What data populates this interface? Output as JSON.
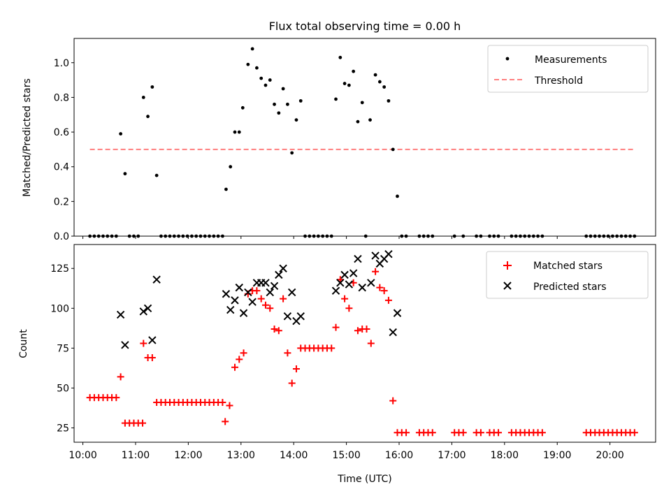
{
  "title": "Flux total observing time = 0.00 h",
  "colors": {
    "measurement": "#000000",
    "threshold": "#ff7f7f",
    "matched": "#ff0000",
    "predicted": "#000000"
  },
  "chart_data": [
    {
      "type": "scatter",
      "title": "Flux total observing time = 0.00 h",
      "ylabel": "Matched/Predicted stars",
      "xlabel": "",
      "xlim": [
        "09:50",
        "20:52"
      ],
      "ylim": [
        0,
        1.14
      ],
      "yticks": [
        "0.0",
        "0.2",
        "0.4",
        "0.6",
        "0.8",
        "1.0"
      ],
      "grid": false,
      "legend_position": "top-right",
      "legend": [
        "Measurements",
        "Threshold"
      ],
      "series": [
        {
          "name": "Measurements",
          "marker": "dot",
          "points": [
            [
              "10:08",
              0
            ],
            [
              "10:13",
              0
            ],
            [
              "10:18",
              0
            ],
            [
              "10:23",
              0
            ],
            [
              "10:28",
              0
            ],
            [
              "10:33",
              0
            ],
            [
              "10:38",
              0
            ],
            [
              "10:43",
              0.59
            ],
            [
              "10:48",
              0.36
            ],
            [
              "10:53",
              0
            ],
            [
              "10:58",
              0
            ],
            [
              "11:03",
              0
            ],
            [
              "11:09",
              0.8
            ],
            [
              "11:14",
              0.69
            ],
            [
              "11:19",
              0.86
            ],
            [
              "11:24",
              0.35
            ],
            [
              "11:29",
              0
            ],
            [
              "11:34",
              0
            ],
            [
              "11:39",
              0
            ],
            [
              "11:44",
              0
            ],
            [
              "11:49",
              0
            ],
            [
              "11:54",
              0
            ],
            [
              "11:59",
              0
            ],
            [
              "12:04",
              0
            ],
            [
              "12:09",
              0
            ],
            [
              "12:14",
              0
            ],
            [
              "12:19",
              0
            ],
            [
              "12:24",
              0
            ],
            [
              "12:29",
              0
            ],
            [
              "12:34",
              0
            ],
            [
              "12:39",
              0
            ],
            [
              "12:43",
              0.27
            ],
            [
              "12:48",
              0.4
            ],
            [
              "12:53",
              0.6
            ],
            [
              "12:58",
              0.6
            ],
            [
              "13:02",
              0.74
            ],
            [
              "13:08",
              0.99
            ],
            [
              "13:13",
              1.08
            ],
            [
              "13:18",
              0.97
            ],
            [
              "13:23",
              0.91
            ],
            [
              "13:28",
              0.87
            ],
            [
              "13:33",
              0.9
            ],
            [
              "13:38",
              0.76
            ],
            [
              "13:43",
              0.71
            ],
            [
              "13:48",
              0.85
            ],
            [
              "13:53",
              0.76
            ],
            [
              "13:58",
              0.48
            ],
            [
              "14:03",
              0.67
            ],
            [
              "14:08",
              0.78
            ],
            [
              "14:13",
              0
            ],
            [
              "14:18",
              0
            ],
            [
              "14:23",
              0
            ],
            [
              "14:28",
              0
            ],
            [
              "14:33",
              0
            ],
            [
              "14:38",
              0
            ],
            [
              "14:43",
              0
            ],
            [
              "14:48",
              0.79
            ],
            [
              "14:53",
              1.03
            ],
            [
              "14:58",
              0.88
            ],
            [
              "15:03",
              0.87
            ],
            [
              "15:08",
              0.95
            ],
            [
              "15:13",
              0.66
            ],
            [
              "15:18",
              0.77
            ],
            [
              "15:22",
              0
            ],
            [
              "15:27",
              0.67
            ],
            [
              "15:33",
              0.93
            ],
            [
              "15:38",
              0.89
            ],
            [
              "15:43",
              0.86
            ],
            [
              "15:48",
              0.78
            ],
            [
              "15:53",
              0.5
            ],
            [
              "15:58",
              0.23
            ],
            [
              "16:03",
              0
            ],
            [
              "16:08",
              0
            ],
            [
              "16:23",
              0
            ],
            [
              "16:28",
              0
            ],
            [
              "16:33",
              0
            ],
            [
              "16:38",
              0
            ],
            [
              "17:03",
              0
            ],
            [
              "17:13",
              0
            ],
            [
              "17:28",
              0
            ],
            [
              "17:33",
              0
            ],
            [
              "17:43",
              0
            ],
            [
              "17:48",
              0
            ],
            [
              "17:53",
              0
            ],
            [
              "18:08",
              0
            ],
            [
              "18:13",
              0
            ],
            [
              "18:18",
              0
            ],
            [
              "18:23",
              0
            ],
            [
              "18:28",
              0
            ],
            [
              "18:33",
              0
            ],
            [
              "18:38",
              0
            ],
            [
              "18:43",
              0
            ],
            [
              "19:33",
              0
            ],
            [
              "19:38",
              0
            ],
            [
              "19:43",
              0
            ],
            [
              "19:48",
              0
            ],
            [
              "19:53",
              0
            ],
            [
              "19:58",
              0
            ],
            [
              "20:03",
              0
            ],
            [
              "20:08",
              0
            ],
            [
              "20:13",
              0
            ],
            [
              "20:18",
              0
            ],
            [
              "20:23",
              0
            ],
            [
              "20:28",
              0
            ]
          ]
        },
        {
          "name": "Threshold",
          "style": "dashed",
          "points": [
            [
              "10:08",
              0.5
            ],
            [
              "20:28",
              0.5
            ]
          ]
        }
      ]
    },
    {
      "type": "scatter",
      "ylabel": "Count",
      "xlabel": "Time (UTC)",
      "xlim": [
        "09:50",
        "20:52"
      ],
      "ylim": [
        16,
        140
      ],
      "yticks": [
        "25",
        "50",
        "75",
        "100",
        "125"
      ],
      "xticks": [
        "10:00",
        "11:00",
        "12:00",
        "13:00",
        "14:00",
        "15:00",
        "16:00",
        "17:00",
        "18:00",
        "19:00",
        "20:00"
      ],
      "grid": false,
      "legend_position": "top-right",
      "legend": [
        "Matched stars",
        "Predicted stars"
      ],
      "series": [
        {
          "name": "Matched stars",
          "marker": "plus",
          "points": [
            [
              "10:08",
              44
            ],
            [
              "10:13",
              44
            ],
            [
              "10:18",
              44
            ],
            [
              "10:23",
              44
            ],
            [
              "10:28",
              44
            ],
            [
              "10:33",
              44
            ],
            [
              "10:38",
              44
            ],
            [
              "10:43",
              57
            ],
            [
              "10:48",
              28
            ],
            [
              "10:53",
              28
            ],
            [
              "10:58",
              28
            ],
            [
              "11:03",
              28
            ],
            [
              "11:08",
              28
            ],
            [
              "11:09",
              78
            ],
            [
              "11:14",
              69
            ],
            [
              "11:19",
              69
            ],
            [
              "11:24",
              41
            ],
            [
              "11:29",
              41
            ],
            [
              "11:34",
              41
            ],
            [
              "11:39",
              41
            ],
            [
              "11:44",
              41
            ],
            [
              "11:49",
              41
            ],
            [
              "11:54",
              41
            ],
            [
              "11:59",
              41
            ],
            [
              "12:04",
              41
            ],
            [
              "12:09",
              41
            ],
            [
              "12:14",
              41
            ],
            [
              "12:19",
              41
            ],
            [
              "12:24",
              41
            ],
            [
              "12:29",
              41
            ],
            [
              "12:34",
              41
            ],
            [
              "12:39",
              41
            ],
            [
              "12:42",
              29
            ],
            [
              "12:47",
              39
            ],
            [
              "12:53",
              63
            ],
            [
              "12:58",
              68
            ],
            [
              "13:03",
              72
            ],
            [
              "13:08",
              109
            ],
            [
              "13:13",
              111
            ],
            [
              "13:18",
              111
            ],
            [
              "13:23",
              106
            ],
            [
              "13:28",
              102
            ],
            [
              "13:33",
              100
            ],
            [
              "13:38",
              87
            ],
            [
              "13:43",
              86
            ],
            [
              "13:48",
              106
            ],
            [
              "13:53",
              72
            ],
            [
              "13:58",
              53
            ],
            [
              "14:03",
              62
            ],
            [
              "14:08",
              75
            ],
            [
              "14:13",
              75
            ],
            [
              "14:18",
              75
            ],
            [
              "14:23",
              75
            ],
            [
              "14:28",
              75
            ],
            [
              "14:33",
              75
            ],
            [
              "14:38",
              75
            ],
            [
              "14:43",
              75
            ],
            [
              "14:48",
              88
            ],
            [
              "14:53",
              118
            ],
            [
              "14:58",
              106
            ],
            [
              "15:03",
              100
            ],
            [
              "15:08",
              116
            ],
            [
              "15:13",
              86
            ],
            [
              "15:18",
              87
            ],
            [
              "15:23",
              87
            ],
            [
              "15:28",
              78
            ],
            [
              "15:33",
              123
            ],
            [
              "15:38",
              113
            ],
            [
              "15:43",
              111
            ],
            [
              "15:48",
              105
            ],
            [
              "15:53",
              42
            ],
            [
              "15:58",
              22
            ],
            [
              "16:03",
              22
            ],
            [
              "16:08",
              22
            ],
            [
              "16:23",
              22
            ],
            [
              "16:28",
              22
            ],
            [
              "16:33",
              22
            ],
            [
              "16:38",
              22
            ],
            [
              "17:03",
              22
            ],
            [
              "17:08",
              22
            ],
            [
              "17:13",
              22
            ],
            [
              "17:28",
              22
            ],
            [
              "17:33",
              22
            ],
            [
              "17:43",
              22
            ],
            [
              "17:48",
              22
            ],
            [
              "17:53",
              22
            ],
            [
              "18:08",
              22
            ],
            [
              "18:13",
              22
            ],
            [
              "18:18",
              22
            ],
            [
              "18:23",
              22
            ],
            [
              "18:28",
              22
            ],
            [
              "18:33",
              22
            ],
            [
              "18:38",
              22
            ],
            [
              "18:43",
              22
            ],
            [
              "19:33",
              22
            ],
            [
              "19:38",
              22
            ],
            [
              "19:43",
              22
            ],
            [
              "19:48",
              22
            ],
            [
              "19:53",
              22
            ],
            [
              "19:58",
              22
            ],
            [
              "20:03",
              22
            ],
            [
              "20:08",
              22
            ],
            [
              "20:13",
              22
            ],
            [
              "20:18",
              22
            ],
            [
              "20:23",
              22
            ],
            [
              "20:28",
              22
            ]
          ]
        },
        {
          "name": "Predicted stars",
          "marker": "x",
          "points": [
            [
              "10:43",
              96
            ],
            [
              "10:48",
              77
            ],
            [
              "11:09",
              98
            ],
            [
              "11:14",
              100
            ],
            [
              "11:19",
              80
            ],
            [
              "11:24",
              118
            ],
            [
              "12:43",
              109
            ],
            [
              "12:48",
              99
            ],
            [
              "12:53",
              105
            ],
            [
              "12:58",
              113
            ],
            [
              "13:03",
              97
            ],
            [
              "13:08",
              110
            ],
            [
              "13:13",
              104
            ],
            [
              "13:18",
              116
            ],
            [
              "13:23",
              116
            ],
            [
              "13:28",
              116
            ],
            [
              "13:33",
              110
            ],
            [
              "13:38",
              114
            ],
            [
              "13:43",
              121
            ],
            [
              "13:48",
              125
            ],
            [
              "13:53",
              95
            ],
            [
              "13:58",
              110
            ],
            [
              "14:03",
              92
            ],
            [
              "14:08",
              95
            ],
            [
              "14:48",
              111
            ],
            [
              "14:53",
              116
            ],
            [
              "14:58",
              121
            ],
            [
              "15:03",
              115
            ],
            [
              "15:08",
              122
            ],
            [
              "15:13",
              131
            ],
            [
              "15:18",
              113
            ],
            [
              "15:28",
              116
            ],
            [
              "15:33",
              133
            ],
            [
              "15:38",
              128
            ],
            [
              "15:43",
              131
            ],
            [
              "15:48",
              134
            ],
            [
              "15:53",
              85
            ],
            [
              "15:58",
              97
            ]
          ]
        }
      ]
    }
  ]
}
